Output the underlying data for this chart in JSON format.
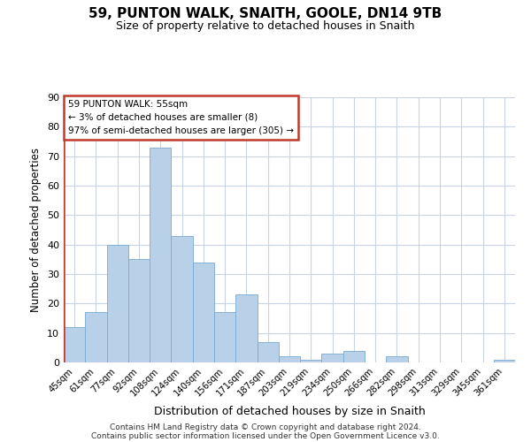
{
  "title": "59, PUNTON WALK, SNAITH, GOOLE, DN14 9TB",
  "subtitle": "Size of property relative to detached houses in Snaith",
  "xlabel": "Distribution of detached houses by size in Snaith",
  "ylabel": "Number of detached properties",
  "categories": [
    "45sqm",
    "61sqm",
    "77sqm",
    "92sqm",
    "108sqm",
    "124sqm",
    "140sqm",
    "156sqm",
    "171sqm",
    "187sqm",
    "203sqm",
    "219sqm",
    "234sqm",
    "250sqm",
    "266sqm",
    "282sqm",
    "298sqm",
    "313sqm",
    "329sqm",
    "345sqm",
    "361sqm"
  ],
  "values": [
    12,
    17,
    40,
    35,
    73,
    43,
    34,
    17,
    23,
    7,
    2,
    1,
    3,
    4,
    0,
    2,
    0,
    0,
    0,
    0,
    1
  ],
  "bar_color": "#b8d0e8",
  "bar_edge_color": "#7aaad0",
  "highlight_color": "#c0392b",
  "highlight_index": 0,
  "ylim": [
    0,
    90
  ],
  "yticks": [
    0,
    10,
    20,
    30,
    40,
    50,
    60,
    70,
    80,
    90
  ],
  "annotation_title": "59 PUNTON WALK: 55sqm",
  "annotation_line1": "← 3% of detached houses are smaller (8)",
  "annotation_line2": "97% of semi-detached houses are larger (305) →",
  "footer_line1": "Contains HM Land Registry data © Crown copyright and database right 2024.",
  "footer_line2": "Contains public sector information licensed under the Open Government Licence v3.0.",
  "background_color": "#ffffff",
  "grid_color": "#c8d4e4"
}
